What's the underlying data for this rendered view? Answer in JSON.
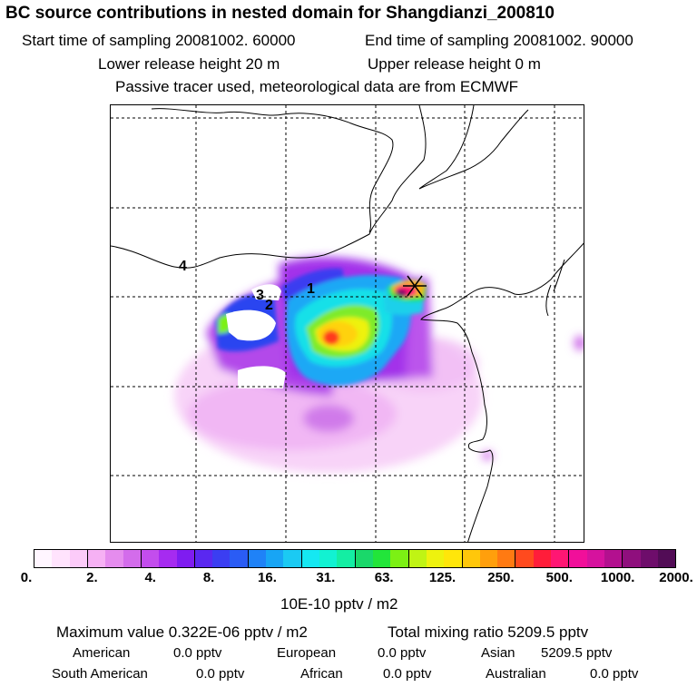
{
  "header": {
    "title": "BC  source contributions in nested domain for Shangdianzi_200810",
    "start_time": "Start time of sampling 20081002. 60000",
    "end_time": "End time of sampling 20081002. 90000",
    "lower_height": "Lower release height   20 m",
    "upper_height": "Upper release height    0 m",
    "tracer_note": "Passive tracer used, meteorological data are from ECMWF"
  },
  "map": {
    "markers": [
      "1",
      "2",
      "3",
      "4"
    ],
    "receptor_icon": "x-cross-marker"
  },
  "colorbar": {
    "colors": [
      "#fff6ff",
      "#ffe3fd",
      "#fccbf9",
      "#f6b1f4",
      "#e58cee",
      "#d36ceb",
      "#c34ded",
      "#a62bf0",
      "#7f1cf0",
      "#5a28f0",
      "#3b3ef2",
      "#2a5cf5",
      "#1f82f7",
      "#18a5f5",
      "#1bcaf3",
      "#15e8f2",
      "#12f2d2",
      "#14eea3",
      "#1ad86a",
      "#22e53a",
      "#7cf014",
      "#c0f414",
      "#eef20e",
      "#ffe60a",
      "#ffc70a",
      "#ff9f0c",
      "#ff7a12",
      "#ff4a1e",
      "#ff1d3a",
      "#ff1673",
      "#f10f9a",
      "#d6129e",
      "#b3108f",
      "#8f0f7d",
      "#6e0d6b",
      "#520c56"
    ],
    "tick_labels": [
      "0.",
      "2.",
      "4.",
      "8.",
      "16.",
      "31.",
      "63.",
      "125.",
      "250.",
      "500.",
      "1000.",
      "2000."
    ],
    "units": "10E-10 pptv / m2"
  },
  "summary": {
    "max_value": "Maximum value  0.322E-06 pptv / m2",
    "total_mixing": "Total mixing ratio      5209.5 pptv",
    "sources": [
      {
        "label": "American",
        "value": "0.0 pptv"
      },
      {
        "label": "European",
        "value": "0.0 pptv"
      },
      {
        "label": "Asian",
        "value": "5209.5 pptv"
      },
      {
        "label": "South American",
        "value": "0.0 pptv"
      },
      {
        "label": "African",
        "value": "0.0 pptv"
      },
      {
        "label": "Australian",
        "value": "0.0 pptv"
      }
    ]
  }
}
